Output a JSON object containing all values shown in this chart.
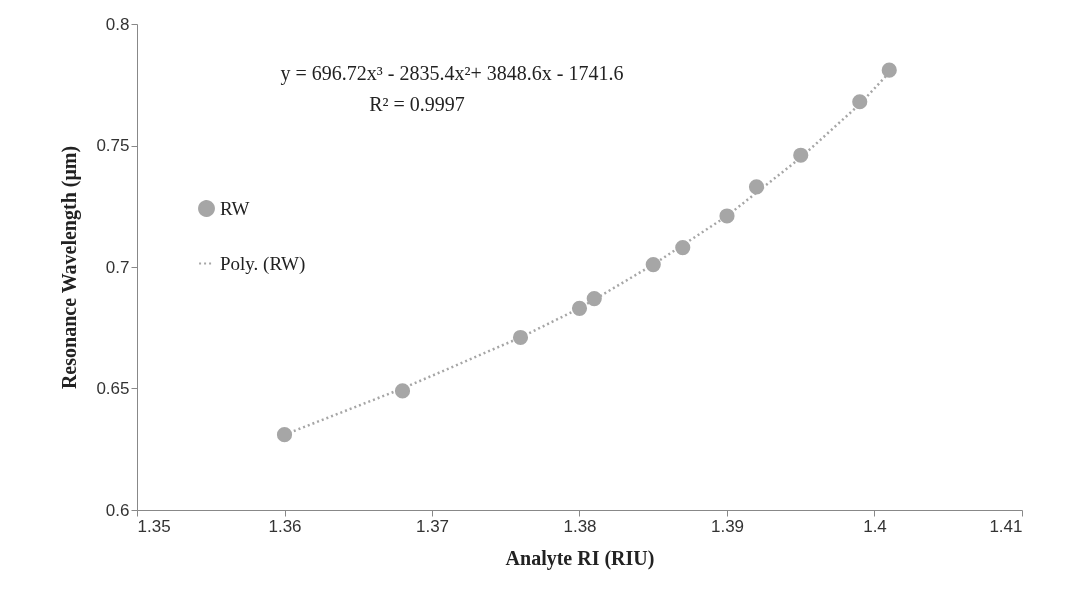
{
  "chart_data": {
    "type": "scatter",
    "xlabel": "Analyte RI (RIU)",
    "ylabel": "Resonance Wavelength (μm)",
    "annotations": [
      "y = 696.72x³ - 2835.4x²+ 3848.6x - 1741.6",
      "R² = 0.9997"
    ],
    "xlim": [
      1.35,
      1.41
    ],
    "xticks": [
      1.35,
      1.36,
      1.37,
      1.38,
      1.39,
      1.4,
      1.41
    ],
    "ylim": [
      0.6,
      0.8
    ],
    "yticks": [
      0.6,
      0.65,
      0.7,
      0.75,
      0.8
    ],
    "grid": false,
    "legend": "left",
    "series": [
      {
        "name": "RW",
        "color": "#a6a6a6",
        "marker": "circle",
        "x": [
          1.36,
          1.368,
          1.376,
          1.38,
          1.381,
          1.385,
          1.387,
          1.39,
          1.392,
          1.395,
          1.399,
          1.401
        ],
        "values": [
          0.631,
          0.649,
          0.671,
          0.683,
          0.687,
          0.701,
          0.708,
          0.721,
          0.733,
          0.746,
          0.768,
          0.781
        ]
      },
      {
        "name": "Poly. (RW)",
        "type": "line",
        "line_style": "dotted",
        "marker": "none",
        "color": "#a6a6a6",
        "x": [
          1.36,
          1.368,
          1.376,
          1.38,
          1.385,
          1.39,
          1.395,
          1.399,
          1.401
        ],
        "values": [
          0.631,
          0.65,
          0.671,
          0.683,
          0.701,
          0.721,
          0.745,
          0.767,
          0.78
        ]
      }
    ]
  }
}
